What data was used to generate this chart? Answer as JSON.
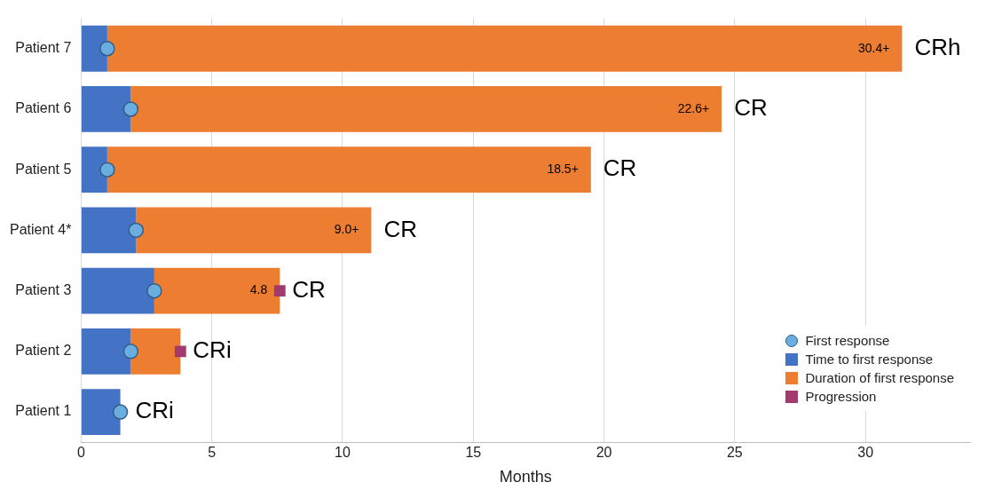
{
  "chart_data": {
    "type": "bar",
    "orientation": "horizontal",
    "stacked": true,
    "xlabel": "Months",
    "categories": [
      "Patient 7",
      "Patient 6",
      "Patient 5",
      "Patient 4*",
      "Patient 3",
      "Patient 2",
      "Patient 1"
    ],
    "series": [
      {
        "name": "Time to first response",
        "color": "#4472c4",
        "values": [
          1.0,
          1.9,
          1.0,
          2.1,
          2.8,
          1.9,
          1.5
        ]
      },
      {
        "name": "Duration of first response",
        "color": "#ed7d31",
        "values": [
          30.4,
          22.6,
          18.5,
          9.0,
          4.8,
          1.9,
          null
        ],
        "value_labels": [
          "30.4+",
          "22.6+",
          "18.5+",
          "9.0+",
          "4.8",
          null,
          null
        ]
      },
      {
        "name": "First response",
        "type": "scatter",
        "marker": "circle",
        "color": "#6aaee0",
        "x": [
          "Patient 7",
          "Patient 6",
          "Patient 5",
          "Patient 4*",
          "Patient 3",
          "Patient 2",
          "Patient 1"
        ],
        "values": [
          1.0,
          1.9,
          1.0,
          2.1,
          2.8,
          1.9,
          1.5
        ]
      },
      {
        "name": "Progression",
        "type": "scatter",
        "marker": "square",
        "color": "#a33a6e",
        "x": [
          "Patient 3",
          "Patient 2"
        ],
        "values": [
          7.6,
          3.8
        ]
      }
    ],
    "annotations": [
      {
        "text": "CRh",
        "x": 31.4,
        "y": "Patient 7"
      },
      {
        "text": "CR",
        "x": 24.5,
        "y": "Patient 6"
      },
      {
        "text": "CR",
        "x": 19.5,
        "y": "Patient 5"
      },
      {
        "text": "CR",
        "x": 11.1,
        "y": "Patient 4*"
      },
      {
        "text": "CR",
        "x": 7.6,
        "y": "Patient 3"
      },
      {
        "text": "CRi",
        "x": 3.8,
        "y": "Patient 2"
      },
      {
        "text": "CRi",
        "x": 1.6,
        "y": "Patient 1"
      }
    ],
    "xlim": [
      0,
      34
    ],
    "xticks": [
      0,
      5,
      10,
      15,
      20,
      25,
      30
    ],
    "grid": "x",
    "legend": "bottom right"
  }
}
